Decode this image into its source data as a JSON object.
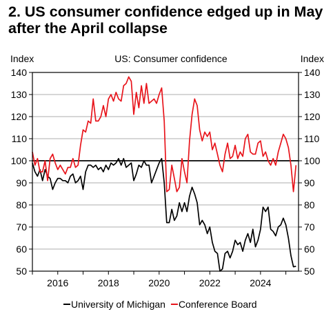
{
  "title": "2. US consumer confidence edged up in May after the April collapse",
  "chart_data": {
    "type": "line",
    "inner_title": "US: Consumer confidence",
    "ylabel_left": "Index",
    "ylabel_right": "Index",
    "ylim": [
      50,
      140
    ],
    "yticks": [
      50,
      60,
      70,
      80,
      90,
      100,
      110,
      120,
      130,
      140
    ],
    "xlim": [
      2015.0,
      2025.5
    ],
    "xticks": [
      2016,
      2018,
      2020,
      2022,
      2024
    ],
    "reference_line": 100,
    "grid": true,
    "legend_position": "bottom",
    "colors": {
      "michigan": "#000000",
      "conference": "#e8141b"
    },
    "series": [
      {
        "name": "University of Michigan",
        "color": "#000000",
        "points": [
          [
            2015.0,
            99
          ],
          [
            2015.1,
            95
          ],
          [
            2015.2,
            93
          ],
          [
            2015.3,
            96
          ],
          [
            2015.4,
            91
          ],
          [
            2015.5,
            96
          ],
          [
            2015.6,
            93
          ],
          [
            2015.7,
            92
          ],
          [
            2015.8,
            87
          ],
          [
            2015.9,
            90
          ],
          [
            2016.0,
            92
          ],
          [
            2016.1,
            92
          ],
          [
            2016.2,
            91
          ],
          [
            2016.3,
            91
          ],
          [
            2016.4,
            90
          ],
          [
            2016.5,
            93
          ],
          [
            2016.6,
            94
          ],
          [
            2016.7,
            90
          ],
          [
            2016.8,
            91
          ],
          [
            2016.9,
            93
          ],
          [
            2017.0,
            87
          ],
          [
            2017.1,
            95
          ],
          [
            2017.2,
            98
          ],
          [
            2017.3,
            98
          ],
          [
            2017.4,
            97
          ],
          [
            2017.5,
            98
          ],
          [
            2017.6,
            96
          ],
          [
            2017.7,
            97
          ],
          [
            2017.8,
            95
          ],
          [
            2017.9,
            98
          ],
          [
            2018.0,
            96
          ],
          [
            2018.1,
            99
          ],
          [
            2018.2,
            98
          ],
          [
            2018.3,
            99
          ],
          [
            2018.4,
            101
          ],
          [
            2018.5,
            98
          ],
          [
            2018.6,
            101
          ],
          [
            2018.7,
            97
          ],
          [
            2018.8,
            98
          ],
          [
            2018.9,
            99
          ],
          [
            2019.0,
            91
          ],
          [
            2019.1,
            94
          ],
          [
            2019.2,
            98
          ],
          [
            2019.3,
            97
          ],
          [
            2019.4,
            100
          ],
          [
            2019.5,
            98
          ],
          [
            2019.6,
            98
          ],
          [
            2019.7,
            90
          ],
          [
            2019.8,
            93
          ],
          [
            2019.9,
            96
          ],
          [
            2020.0,
            99
          ],
          [
            2020.1,
            101
          ],
          [
            2020.2,
            90
          ],
          [
            2020.3,
            72
          ],
          [
            2020.4,
            72
          ],
          [
            2020.5,
            78
          ],
          [
            2020.6,
            73
          ],
          [
            2020.7,
            75
          ],
          [
            2020.8,
            81
          ],
          [
            2020.9,
            77
          ],
          [
            2021.0,
            81
          ],
          [
            2021.1,
            77
          ],
          [
            2021.2,
            84
          ],
          [
            2021.3,
            88
          ],
          [
            2021.4,
            85
          ],
          [
            2021.5,
            81
          ],
          [
            2021.6,
            71
          ],
          [
            2021.7,
            73
          ],
          [
            2021.8,
            71
          ],
          [
            2021.9,
            67
          ],
          [
            2022.0,
            70
          ],
          [
            2022.1,
            63
          ],
          [
            2022.2,
            59
          ],
          [
            2022.3,
            58
          ],
          [
            2022.4,
            50
          ],
          [
            2022.5,
            51
          ],
          [
            2022.6,
            58
          ],
          [
            2022.7,
            59
          ],
          [
            2022.8,
            56
          ],
          [
            2022.9,
            59
          ],
          [
            2023.0,
            64
          ],
          [
            2023.1,
            62
          ],
          [
            2023.2,
            63
          ],
          [
            2023.3,
            59
          ],
          [
            2023.4,
            64
          ],
          [
            2023.5,
            67
          ],
          [
            2023.6,
            63
          ],
          [
            2023.7,
            69
          ],
          [
            2023.8,
            61
          ],
          [
            2023.9,
            64
          ],
          [
            2024.0,
            69
          ],
          [
            2024.1,
            79
          ],
          [
            2024.2,
            77
          ],
          [
            2024.3,
            79
          ],
          [
            2024.4,
            69
          ],
          [
            2024.5,
            68
          ],
          [
            2024.6,
            66
          ],
          [
            2024.7,
            70
          ],
          [
            2024.8,
            71
          ],
          [
            2024.9,
            74
          ],
          [
            2025.0,
            71
          ],
          [
            2025.1,
            65
          ],
          [
            2025.2,
            57
          ],
          [
            2025.3,
            52
          ],
          [
            2025.4,
            52.2
          ]
        ]
      },
      {
        "name": "Conference Board",
        "color": "#e8141b",
        "points": [
          [
            2015.0,
            104
          ],
          [
            2015.1,
            98
          ],
          [
            2015.2,
            101
          ],
          [
            2015.3,
            95
          ],
          [
            2015.4,
            95
          ],
          [
            2015.5,
            100
          ],
          [
            2015.6,
            91
          ],
          [
            2015.7,
            101
          ],
          [
            2015.8,
            103
          ],
          [
            2015.9,
            99
          ],
          [
            2016.0,
            96
          ],
          [
            2016.1,
            98
          ],
          [
            2016.2,
            96
          ],
          [
            2016.3,
            94
          ],
          [
            2016.4,
            97
          ],
          [
            2016.5,
            97
          ],
          [
            2016.6,
            101
          ],
          [
            2016.7,
            97
          ],
          [
            2016.8,
            98
          ],
          [
            2016.9,
            107
          ],
          [
            2017.0,
            114
          ],
          [
            2017.1,
            113
          ],
          [
            2017.2,
            118
          ],
          [
            2017.3,
            117
          ],
          [
            2017.4,
            128
          ],
          [
            2017.5,
            118
          ],
          [
            2017.6,
            118
          ],
          [
            2017.7,
            120
          ],
          [
            2017.8,
            125
          ],
          [
            2017.9,
            120
          ],
          [
            2018.0,
            128
          ],
          [
            2018.1,
            130
          ],
          [
            2018.2,
            127
          ],
          [
            2018.3,
            131
          ],
          [
            2018.4,
            128
          ],
          [
            2018.5,
            127
          ],
          [
            2018.6,
            134
          ],
          [
            2018.7,
            135
          ],
          [
            2018.8,
            138
          ],
          [
            2018.9,
            136
          ],
          [
            2019.0,
            121
          ],
          [
            2019.1,
            131
          ],
          [
            2019.2,
            124
          ],
          [
            2019.3,
            134
          ],
          [
            2019.4,
            126
          ],
          [
            2019.5,
            135
          ],
          [
            2019.6,
            126
          ],
          [
            2019.7,
            127
          ],
          [
            2019.8,
            128
          ],
          [
            2019.9,
            126
          ],
          [
            2020.0,
            130
          ],
          [
            2020.1,
            133
          ],
          [
            2020.2,
            118
          ],
          [
            2020.3,
            86
          ],
          [
            2020.4,
            87
          ],
          [
            2020.5,
            98
          ],
          [
            2020.6,
            92
          ],
          [
            2020.7,
            86
          ],
          [
            2020.8,
            88
          ],
          [
            2020.9,
            101
          ],
          [
            2021.0,
            95
          ],
          [
            2021.1,
            90
          ],
          [
            2021.2,
            109
          ],
          [
            2021.3,
            121
          ],
          [
            2021.4,
            128
          ],
          [
            2021.5,
            125
          ],
          [
            2021.6,
            114
          ],
          [
            2021.7,
            109
          ],
          [
            2021.8,
            113
          ],
          [
            2021.9,
            111
          ],
          [
            2022.0,
            113
          ],
          [
            2022.1,
            105
          ],
          [
            2022.2,
            108
          ],
          [
            2022.3,
            103
          ],
          [
            2022.4,
            98
          ],
          [
            2022.5,
            95
          ],
          [
            2022.6,
            103
          ],
          [
            2022.7,
            108
          ],
          [
            2022.8,
            101
          ],
          [
            2022.9,
            102
          ],
          [
            2023.0,
            107
          ],
          [
            2023.1,
            101
          ],
          [
            2023.2,
            104
          ],
          [
            2023.3,
            102
          ],
          [
            2023.4,
            110
          ],
          [
            2023.5,
            112
          ],
          [
            2023.6,
            104
          ],
          [
            2023.7,
            103
          ],
          [
            2023.8,
            103
          ],
          [
            2023.9,
            108
          ],
          [
            2024.0,
            109
          ],
          [
            2024.1,
            102
          ],
          [
            2024.2,
            104
          ],
          [
            2024.3,
            100
          ],
          [
            2024.4,
            98
          ],
          [
            2024.5,
            101
          ],
          [
            2024.6,
            98
          ],
          [
            2024.7,
            104
          ],
          [
            2024.8,
            108
          ],
          [
            2024.9,
            112
          ],
          [
            2025.0,
            110
          ],
          [
            2025.1,
            106
          ],
          [
            2025.2,
            98
          ],
          [
            2025.3,
            86
          ],
          [
            2025.4,
            98
          ]
        ]
      }
    ]
  }
}
